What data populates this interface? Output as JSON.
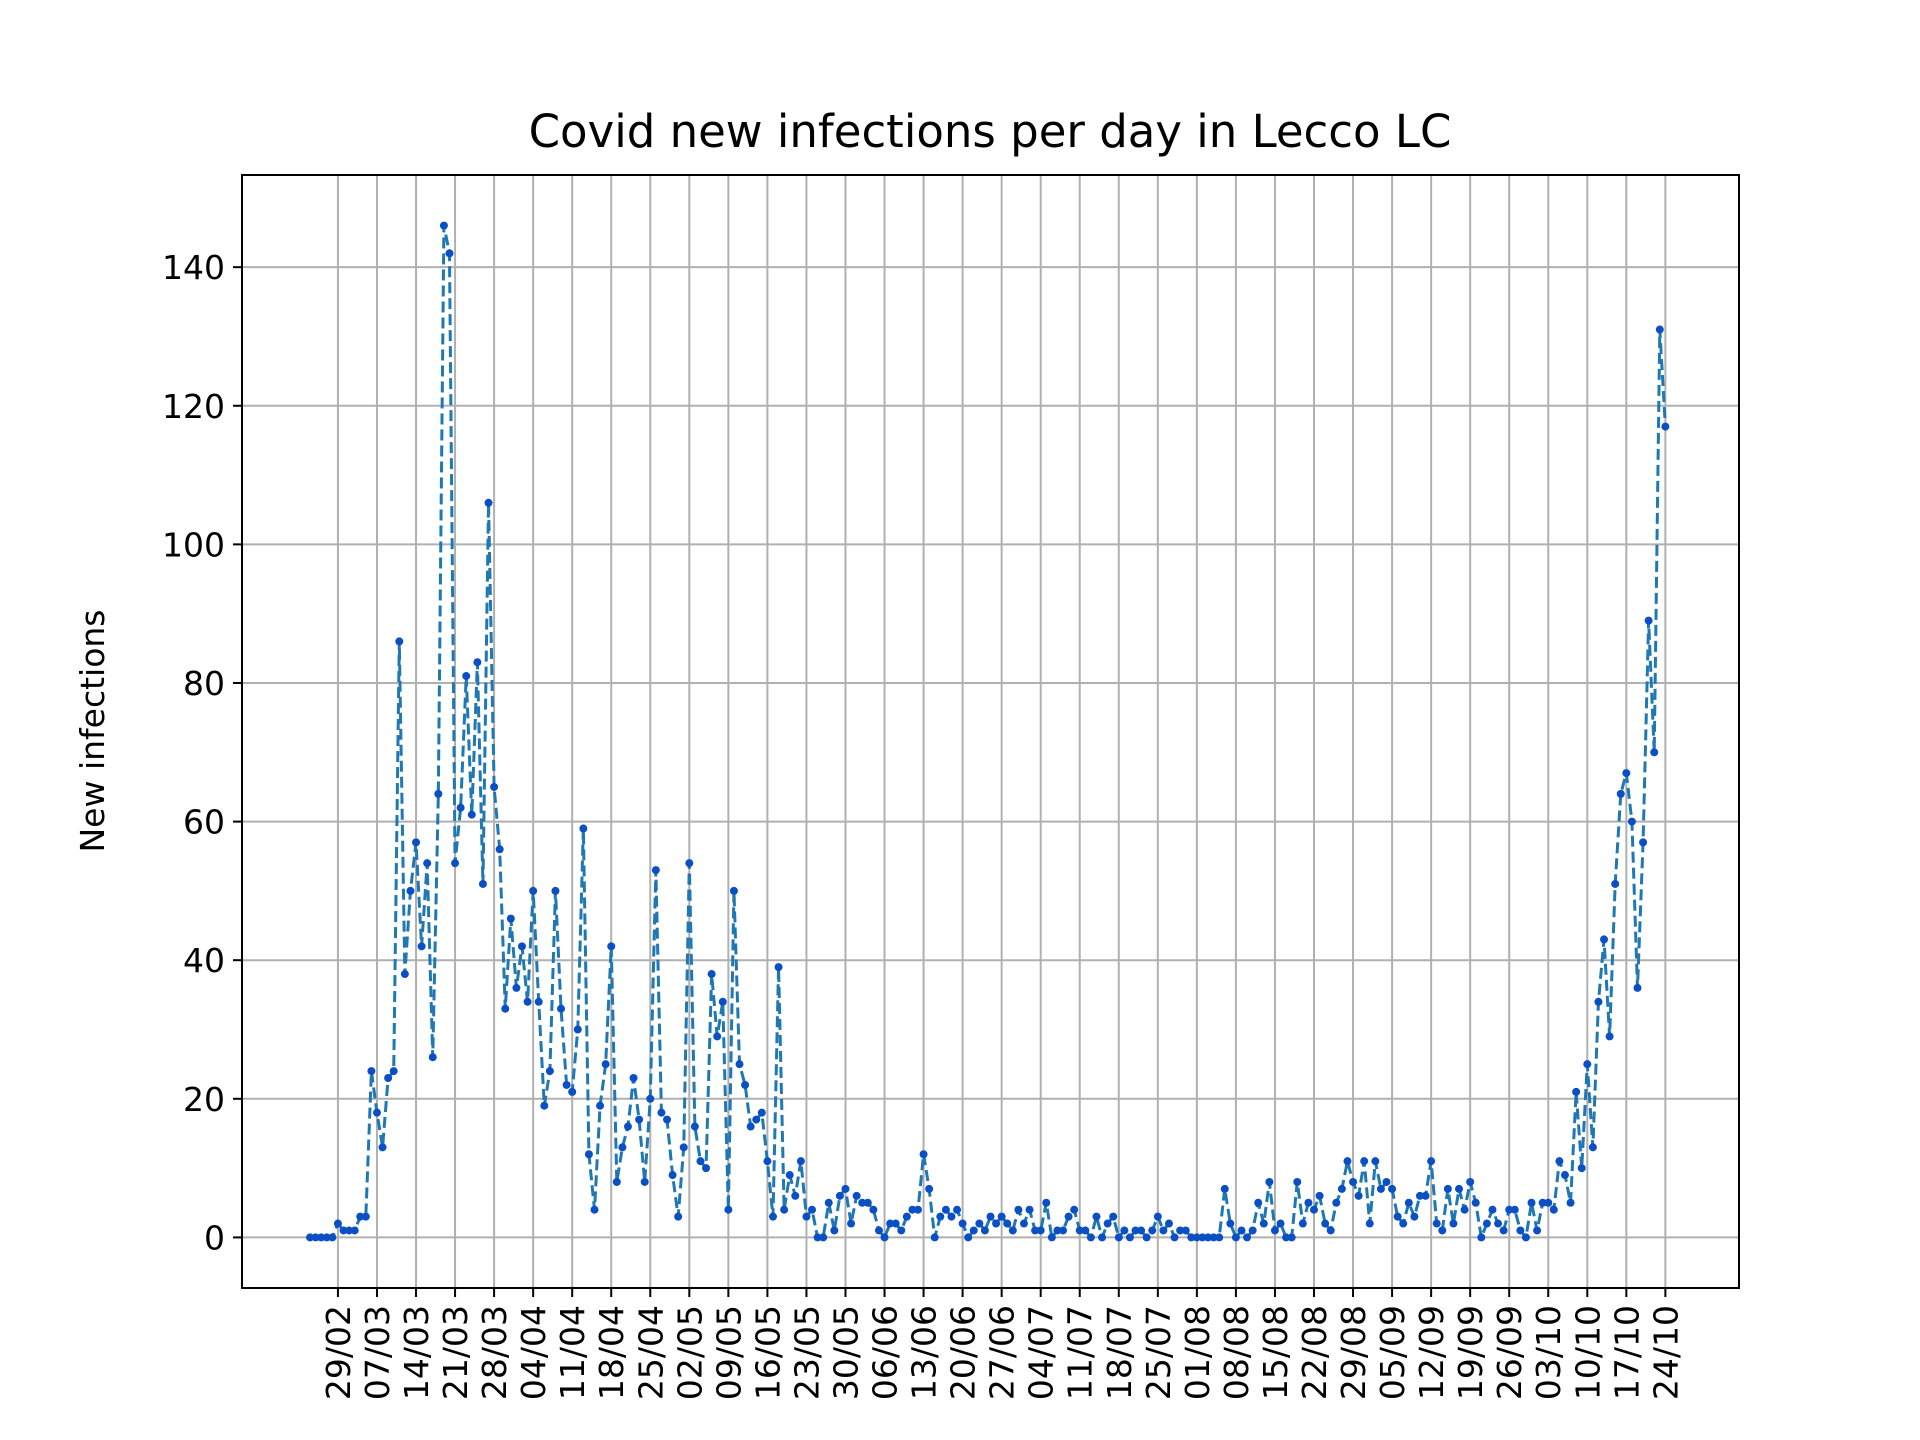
{
  "chart_data": {
    "type": "line",
    "title": "Covid new infections per day in Lecco LC",
    "xlabel": "",
    "ylabel": "New infections",
    "ylim": [
      -7.3,
      153.3
    ],
    "yticks": [
      0,
      20,
      40,
      60,
      80,
      100,
      120,
      140
    ],
    "grid": true,
    "x_start": "2020-02-24",
    "x_end": "2020-10-25",
    "xticks": [
      "29/02",
      "07/03",
      "14/03",
      "21/03",
      "28/03",
      "04/04",
      "11/04",
      "18/04",
      "25/04",
      "02/05",
      "09/05",
      "16/05",
      "23/05",
      "30/05",
      "06/06",
      "13/06",
      "20/06",
      "27/06",
      "04/07",
      "11/07",
      "18/07",
      "25/07",
      "01/08",
      "08/08",
      "15/08",
      "22/08",
      "29/08",
      "05/09",
      "12/09",
      "19/09",
      "26/09",
      "03/10",
      "10/10",
      "17/10",
      "24/10"
    ],
    "series": [
      {
        "name": "",
        "color": "#1f77b4",
        "marker_color": "#0b4fc4",
        "line_style": "dashed",
        "values": [
          0,
          0,
          0,
          0,
          0,
          2,
          1,
          1,
          1,
          3,
          3,
          24,
          18,
          13,
          23,
          24,
          86,
          38,
          50,
          57,
          42,
          54,
          26,
          64,
          146,
          142,
          54,
          62,
          81,
          61,
          83,
          51,
          106,
          65,
          56,
          33,
          46,
          36,
          42,
          34,
          50,
          34,
          19,
          24,
          50,
          33,
          22,
          21,
          30,
          59,
          12,
          4,
          19,
          25,
          42,
          8,
          13,
          16,
          23,
          17,
          8,
          20,
          53,
          18,
          17,
          9,
          3,
          13,
          54,
          16,
          11,
          10,
          38,
          29,
          34,
          4,
          50,
          25,
          22,
          16,
          17,
          18,
          11,
          3,
          39,
          4,
          9,
          6,
          11,
          3,
          4,
          0,
          0,
          5,
          1,
          6,
          7,
          2,
          6,
          5,
          5,
          4,
          1,
          0,
          2,
          2,
          1,
          3,
          4,
          4,
          12,
          7,
          0,
          3,
          4,
          3,
          4,
          2,
          0,
          1,
          2,
          1,
          3,
          2,
          3,
          2,
          1,
          4,
          2,
          4,
          1,
          1,
          5,
          0,
          1,
          1,
          3,
          4,
          1,
          1,
          0,
          3,
          0,
          2,
          3,
          0,
          1,
          0,
          1,
          1,
          0,
          1,
          3,
          1,
          2,
          0,
          1,
          1,
          0,
          0,
          0,
          0,
          0,
          0,
          7,
          2,
          0,
          1,
          0,
          1,
          5,
          2,
          8,
          1,
          2,
          0,
          0,
          8,
          2,
          5,
          4,
          6,
          2,
          1,
          5,
          7,
          11,
          8,
          6,
          11,
          2,
          11,
          7,
          8,
          7,
          3,
          2,
          5,
          3,
          6,
          6,
          11,
          2,
          1,
          7,
          2,
          7,
          4,
          8,
          5,
          0,
          2,
          4,
          2,
          1,
          4,
          4,
          1,
          0,
          5,
          1,
          5,
          5,
          4,
          11,
          9,
          5,
          21,
          10,
          25,
          13,
          34,
          43,
          29,
          51,
          64,
          67,
          60,
          36,
          57,
          89,
          70,
          131,
          117
        ]
      }
    ]
  }
}
